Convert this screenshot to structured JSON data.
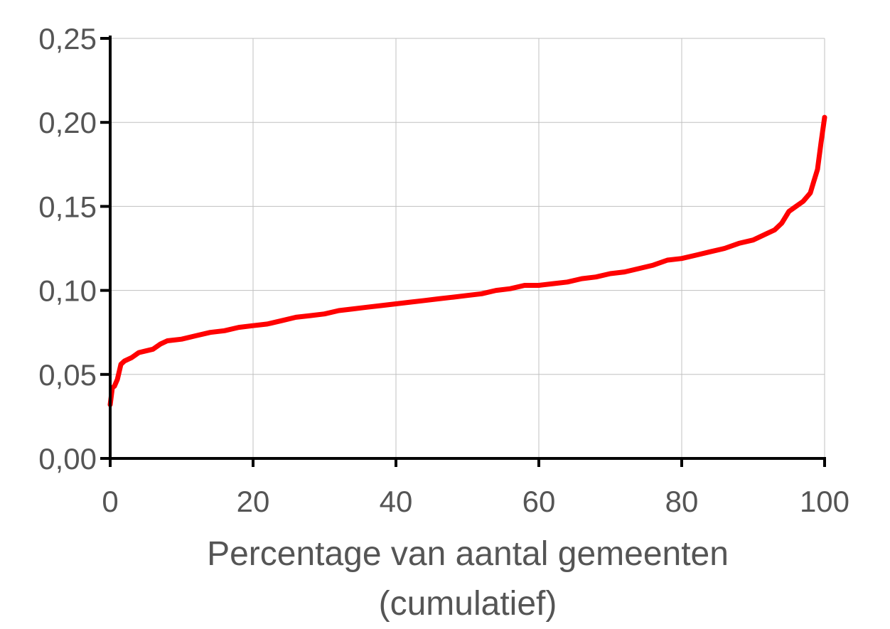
{
  "chart_data": {
    "type": "line",
    "title": "",
    "xlabel": "Percentage van aantal gemeenten",
    "xlabel_line2": "(cumulatief)",
    "ylabel": "",
    "xlim": [
      0,
      100
    ],
    "ylim": [
      0,
      0.25
    ],
    "x_ticks": [
      0,
      20,
      40,
      60,
      80,
      100
    ],
    "x_tick_labels": [
      "0",
      "20",
      "40",
      "60",
      "80",
      "100"
    ],
    "y_ticks": [
      0,
      0.05,
      0.1,
      0.15,
      0.2,
      0.25
    ],
    "y_tick_labels": [
      "0,00",
      "0,05",
      "0,10",
      "0,15",
      "0,20",
      "0,25"
    ],
    "grid": true,
    "colors": {
      "line": "#ff0000",
      "axis": "#000000",
      "grid": "#c0c0c0",
      "text": "#555555"
    },
    "series": [
      {
        "x": [
          0,
          0.3,
          0.6,
          1.0,
          1.5,
          2.0,
          3.0,
          4.0,
          5.0,
          6.0,
          7.0,
          8.0,
          10,
          12,
          14,
          16,
          18,
          20,
          22,
          24,
          26,
          28,
          30,
          32,
          34,
          36,
          38,
          40,
          42,
          44,
          46,
          48,
          50,
          52,
          54,
          56,
          58,
          60,
          62,
          64,
          66,
          68,
          70,
          72,
          74,
          76,
          78,
          80,
          82,
          84,
          86,
          88,
          90,
          92,
          93,
          94,
          95,
          96,
          97,
          98,
          98.5,
          99.0,
          99.5,
          100
        ],
        "y": [
          0.032,
          0.042,
          0.043,
          0.047,
          0.056,
          0.058,
          0.06,
          0.063,
          0.064,
          0.065,
          0.068,
          0.07,
          0.071,
          0.073,
          0.075,
          0.076,
          0.078,
          0.079,
          0.08,
          0.082,
          0.084,
          0.085,
          0.086,
          0.088,
          0.089,
          0.09,
          0.091,
          0.092,
          0.093,
          0.094,
          0.095,
          0.096,
          0.097,
          0.098,
          0.1,
          0.101,
          0.103,
          0.103,
          0.104,
          0.105,
          0.107,
          0.108,
          0.11,
          0.111,
          0.113,
          0.115,
          0.118,
          0.119,
          0.121,
          0.123,
          0.125,
          0.128,
          0.13,
          0.134,
          0.136,
          0.14,
          0.147,
          0.15,
          0.153,
          0.158,
          0.165,
          0.172,
          0.188,
          0.203
        ]
      }
    ]
  }
}
